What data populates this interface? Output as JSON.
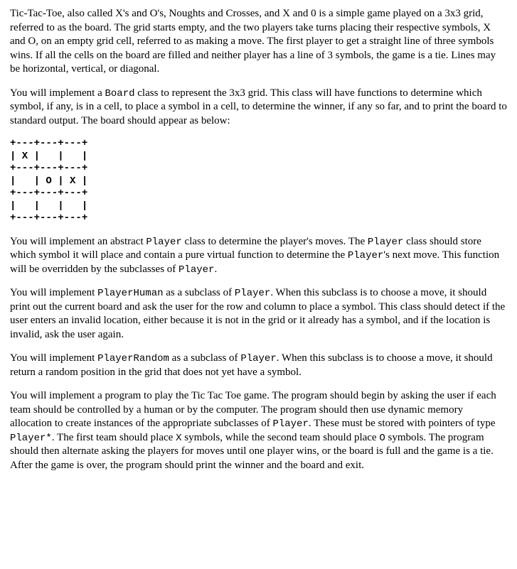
{
  "paragraphs": {
    "p1": "Tic-Tac-Toe, also called X's and O's, Noughts and Crosses, and X and 0 is a simple game played on a 3x3 grid, referred to as the board.  The grid starts empty, and the two players take turns placing their respective symbols, X and O, on an empty grid cell, referred to as making a move.  The first player to get a straight line of three symbols wins.  If all the cells on the board are filled and neither player has a line of 3 symbols, the game is a tie.  Lines may be horizontal, vertical, or diagonal.",
    "p2a": "You will implement a ",
    "p2b": "Board",
    "p2c": " class to represent the 3x3 grid.  This class will have functions to determine which symbol, if any, is in a cell, to place a symbol in a cell, to determine the winner, if any so far, and to print the board to standard output.  The board should appear as below:",
    "board": "+---+---+---+\n| X |   |   |\n+---+---+---+\n|   | O | X |\n+---+---+---+\n|   |   |   |\n+---+---+---+",
    "p3a": "You will implement an abstract ",
    "p3b": "Player",
    "p3c": " class to determine the player's moves.  The ",
    "p3d": "Player",
    "p3e": " class should store which symbol it will place and contain a pure virtual function to determine the ",
    "p3f": "Player",
    "p3g": "'s next move.  This function will be overridden by the subclasses of ",
    "p3h": "Player",
    "p3i": ".",
    "p4a": "You will implement ",
    "p4b": "PlayerHuman",
    "p4c": " as a subclass of ",
    "p4d": "Player",
    "p4e": ".  When this subclass is to choose a move, it should print out the current board and ask the user for the row and column to place a symbol.  This class should detect if the user enters an invalid location, either because it is not in the grid or it already has a symbol, and if the location is invalid, ask the user again.",
    "p5a": "You will implement ",
    "p5b": "PlayerRandom",
    "p5c": " as a subclass of ",
    "p5d": "Player",
    "p5e": ".  When this subclass is to choose a move, it should return a random position in the grid that does not yet have a symbol.",
    "p6a": "You will implement a program to play the Tic Tac Toe game.  The program should begin by asking the user if each team should be controlled by a human or by the computer.  The program should then use dynamic memory allocation to create instances of the appropriate subclasses of ",
    "p6b": "Player",
    "p6c": ".  These must be stored with pointers of type ",
    "p6d": "Player*",
    "p6e": ".  The first team should place ",
    "p6f": "X",
    "p6g": " symbols, while the second team should place ",
    "p6h": "O",
    "p6i": " symbols.  The program should then alternate asking the players for moves until one player wins, or the board is full and the game is a tie.  After the game is over, the program should print the winner and the board and exit."
  }
}
